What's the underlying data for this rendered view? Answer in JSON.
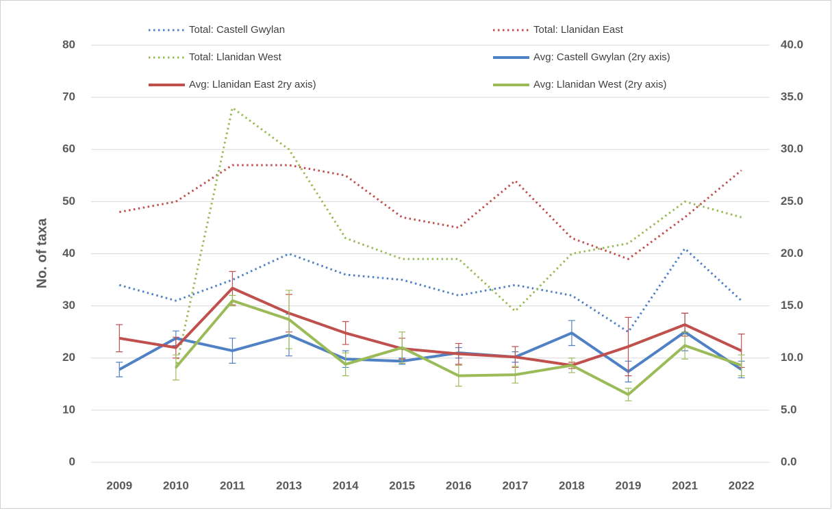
{
  "chart_data": {
    "type": "line",
    "y_label": "No. of taxa",
    "categories": [
      "2009",
      "2010",
      "2011",
      "2013",
      "2014",
      "2015",
      "2016",
      "2017",
      "2018",
      "2019",
      "2021",
      "2022"
    ],
    "ylim": [
      0,
      80
    ],
    "yticks": [
      0,
      10,
      20,
      30,
      40,
      50,
      60,
      70,
      80
    ],
    "y2lim": [
      0,
      40
    ],
    "y2ticks": [
      {
        "value": 0,
        "label": "0.0"
      },
      {
        "value": 5,
        "label": "5.0"
      },
      {
        "value": 10,
        "label": "10.0"
      },
      {
        "value": 15,
        "label": "15.0"
      },
      {
        "value": 20,
        "label": "20.0"
      },
      {
        "value": 25,
        "label": "25.0"
      },
      {
        "value": 30,
        "label": "30.0"
      },
      {
        "value": 35,
        "label": "35.0"
      },
      {
        "value": 40,
        "label": "40.0"
      }
    ],
    "grid": true,
    "series": [
      {
        "name": "Total: Castell Gwylan",
        "color": "#4f81c4",
        "style": "dotted",
        "values": [
          34,
          31,
          35,
          40,
          36,
          35,
          32,
          34,
          32,
          25,
          41,
          31
        ]
      },
      {
        "name": "Total: Llanidan East",
        "color": "#c0504d",
        "style": "dotted",
        "values": [
          48,
          50,
          57,
          57,
          55,
          47,
          45,
          54,
          43,
          39,
          47,
          56
        ]
      },
      {
        "name": "Total: Llanidan West",
        "color": "#9bbb59",
        "style": "dotted",
        "values": [
          null,
          18,
          68,
          60,
          43,
          39,
          39,
          29,
          40,
          42,
          50,
          47
        ]
      },
      {
        "name": "Avg: Castell Gwylan (2ry axis)",
        "color": "#4f81c4",
        "style": "solid",
        "axis": "y2",
        "values": [
          8.9,
          11.9,
          10.7,
          12.2,
          9.9,
          9.7,
          10.5,
          10.1,
          12.4,
          8.7,
          12.5,
          8.9
        ],
        "errors": [
          0.7,
          0.7,
          1.2,
          2.0,
          0.8,
          0.3,
          0.5,
          0.5,
          1.2,
          1.0,
          1.8,
          0.8
        ]
      },
      {
        "name": "Avg: Llanidan East 2ry axis)",
        "color": "#c0504d",
        "style": "solid",
        "axis": "y2",
        "values": [
          11.9,
          11.0,
          16.7,
          14.3,
          12.4,
          10.9,
          10.4,
          10.1,
          9.3,
          11.1,
          13.2,
          10.7
        ],
        "errors": [
          1.3,
          1.0,
          1.6,
          1.8,
          1.1,
          1.0,
          1.0,
          1.0,
          0.3,
          2.8,
          1.1,
          1.6
        ]
      },
      {
        "name": "Avg: Llanidan West (2ry axis)",
        "color": "#9bbb59",
        "style": "solid",
        "axis": "y2",
        "values": [
          null,
          9.1,
          15.5,
          13.7,
          9.4,
          11.0,
          8.3,
          8.4,
          9.3,
          6.5,
          11.2,
          9.3
        ],
        "errors": [
          null,
          1.2,
          0.5,
          2.8,
          1.1,
          1.5,
          1.0,
          0.8,
          0.7,
          0.6,
          1.3,
          1.0
        ]
      }
    ]
  }
}
